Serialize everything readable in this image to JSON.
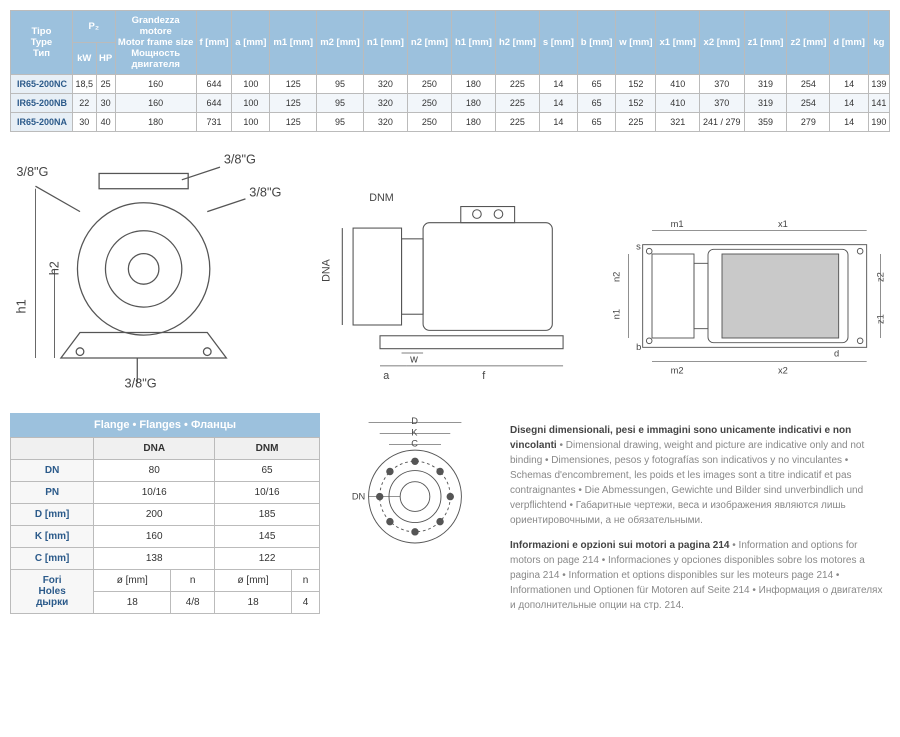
{
  "mainTable": {
    "headers": {
      "type": "Tipo\nType\nТип",
      "p2": "P₂",
      "kw": "kW",
      "hp": "HP",
      "motor": "Grandezza motore\nMotor frame size\nМощность двигателя",
      "f": "f [mm]",
      "a": "a [mm]",
      "m1": "m1 [mm]",
      "m2": "m2 [mm]",
      "n1": "n1 [mm]",
      "n2": "n2 [mm]",
      "h1": "h1 [mm]",
      "h2": "h2 [mm]",
      "s": "s [mm]",
      "b": "b [mm]",
      "w": "w [mm]",
      "x1": "x1 [mm]",
      "x2": "x2 [mm]",
      "z1": "z1 [mm]",
      "z2": "z2 [mm]",
      "d": "d [mm]",
      "kg": "kg"
    },
    "rows": [
      {
        "type": "IR65-200NC",
        "kw": "18,5",
        "hp": "25",
        "motor": "160",
        "f": "644",
        "a": "100",
        "m1": "125",
        "m2": "95",
        "n1": "320",
        "n2": "250",
        "h1": "180",
        "h2": "225",
        "s": "14",
        "b": "65",
        "w": "152",
        "x1": "410",
        "x2": "370",
        "z1": "319",
        "z2": "254",
        "d": "14",
        "kg": "139"
      },
      {
        "type": "IR65-200NB",
        "kw": "22",
        "hp": "30",
        "motor": "160",
        "f": "644",
        "a": "100",
        "m1": "125",
        "m2": "95",
        "n1": "320",
        "n2": "250",
        "h1": "180",
        "h2": "225",
        "s": "14",
        "b": "65",
        "w": "152",
        "x1": "410",
        "x2": "370",
        "z1": "319",
        "z2": "254",
        "d": "14",
        "kg": "141"
      },
      {
        "type": "IR65-200NA",
        "kw": "30",
        "hp": "40",
        "motor": "180",
        "f": "731",
        "a": "100",
        "m1": "125",
        "m2": "95",
        "n1": "320",
        "n2": "250",
        "h1": "180",
        "h2": "225",
        "s": "14",
        "b": "65",
        "w": "225",
        "x1": "321",
        "x2": "241 / 279",
        "z1": "359",
        "z2": "279",
        "d": "14",
        "kg": "190"
      }
    ]
  },
  "diagramLabels": {
    "g38": "3/8\"G",
    "h1": "h1",
    "h2": "h2",
    "dnm": "DNM",
    "dna": "DNA",
    "w": "w",
    "a": "a",
    "f": "f",
    "m1": "m1",
    "m2": "m2",
    "x1": "x1",
    "x2": "x2",
    "s": "s",
    "n1": "n1",
    "n2": "n2",
    "b": "b",
    "d": "d",
    "z1": "z1",
    "z2": "z2"
  },
  "flanges": {
    "title": "Flange • Flanges • Фланцы",
    "cols": {
      "dna": "DNA",
      "dnm": "DNM"
    },
    "rows": {
      "DN": {
        "dna": "80",
        "dnm": "65"
      },
      "PN": {
        "dna": "10/16",
        "dnm": "10/16"
      },
      "D [mm]": {
        "dna": "200",
        "dnm": "185"
      },
      "K [mm]": {
        "dna": "160",
        "dnm": "145"
      },
      "C [mm]": {
        "dna": "138",
        "dnm": "122"
      }
    },
    "holesLabel": "Fori\nHoles\nдырки",
    "holesSub": {
      "diam": "ø [mm]",
      "n": "n"
    },
    "holes": {
      "dna_d": "18",
      "dna_n": "4/8",
      "dnm_d": "18",
      "dnm_n": "4"
    },
    "diaLabels": {
      "D": "D",
      "K": "K",
      "C": "C",
      "DN": "DN"
    }
  },
  "notes": {
    "p1bold": "Disegni dimensionali, pesi e immagini sono unicamente indicativi e non vincolanti",
    "p1": " • Dimensional drawing, weight and picture are indicative only and not binding • Dimensiones, pesos y fotografías son indicativos y no vinculantes • Schemas d'encombrement, les poids et les images sont a titre indicatif et pas contraignantes • Die Abmessungen, Gewichte und Bilder sind unverbindlich und verpflichtend • Габаритные чертежи, веса и изображения являются лишь ориентировочными, а не обязательными.",
    "p2bold": "Informazioni e opzioni sui motori a pagina 214",
    "p2": " • Information and options for motors on page 214 • Informaciones y opciones disponibles sobre los motores a pagina 214 • Information et options disponibles sur les moteurs page 214 • Informationen und Optionen für Motoren auf Seite 214 • Информация о двигателях и дополнительные опции на стр. 214."
  },
  "colors": {
    "headerBg": "#9cc1dd",
    "rowLabelBg": "#e7eff6",
    "link": "#2b5a8a"
  }
}
